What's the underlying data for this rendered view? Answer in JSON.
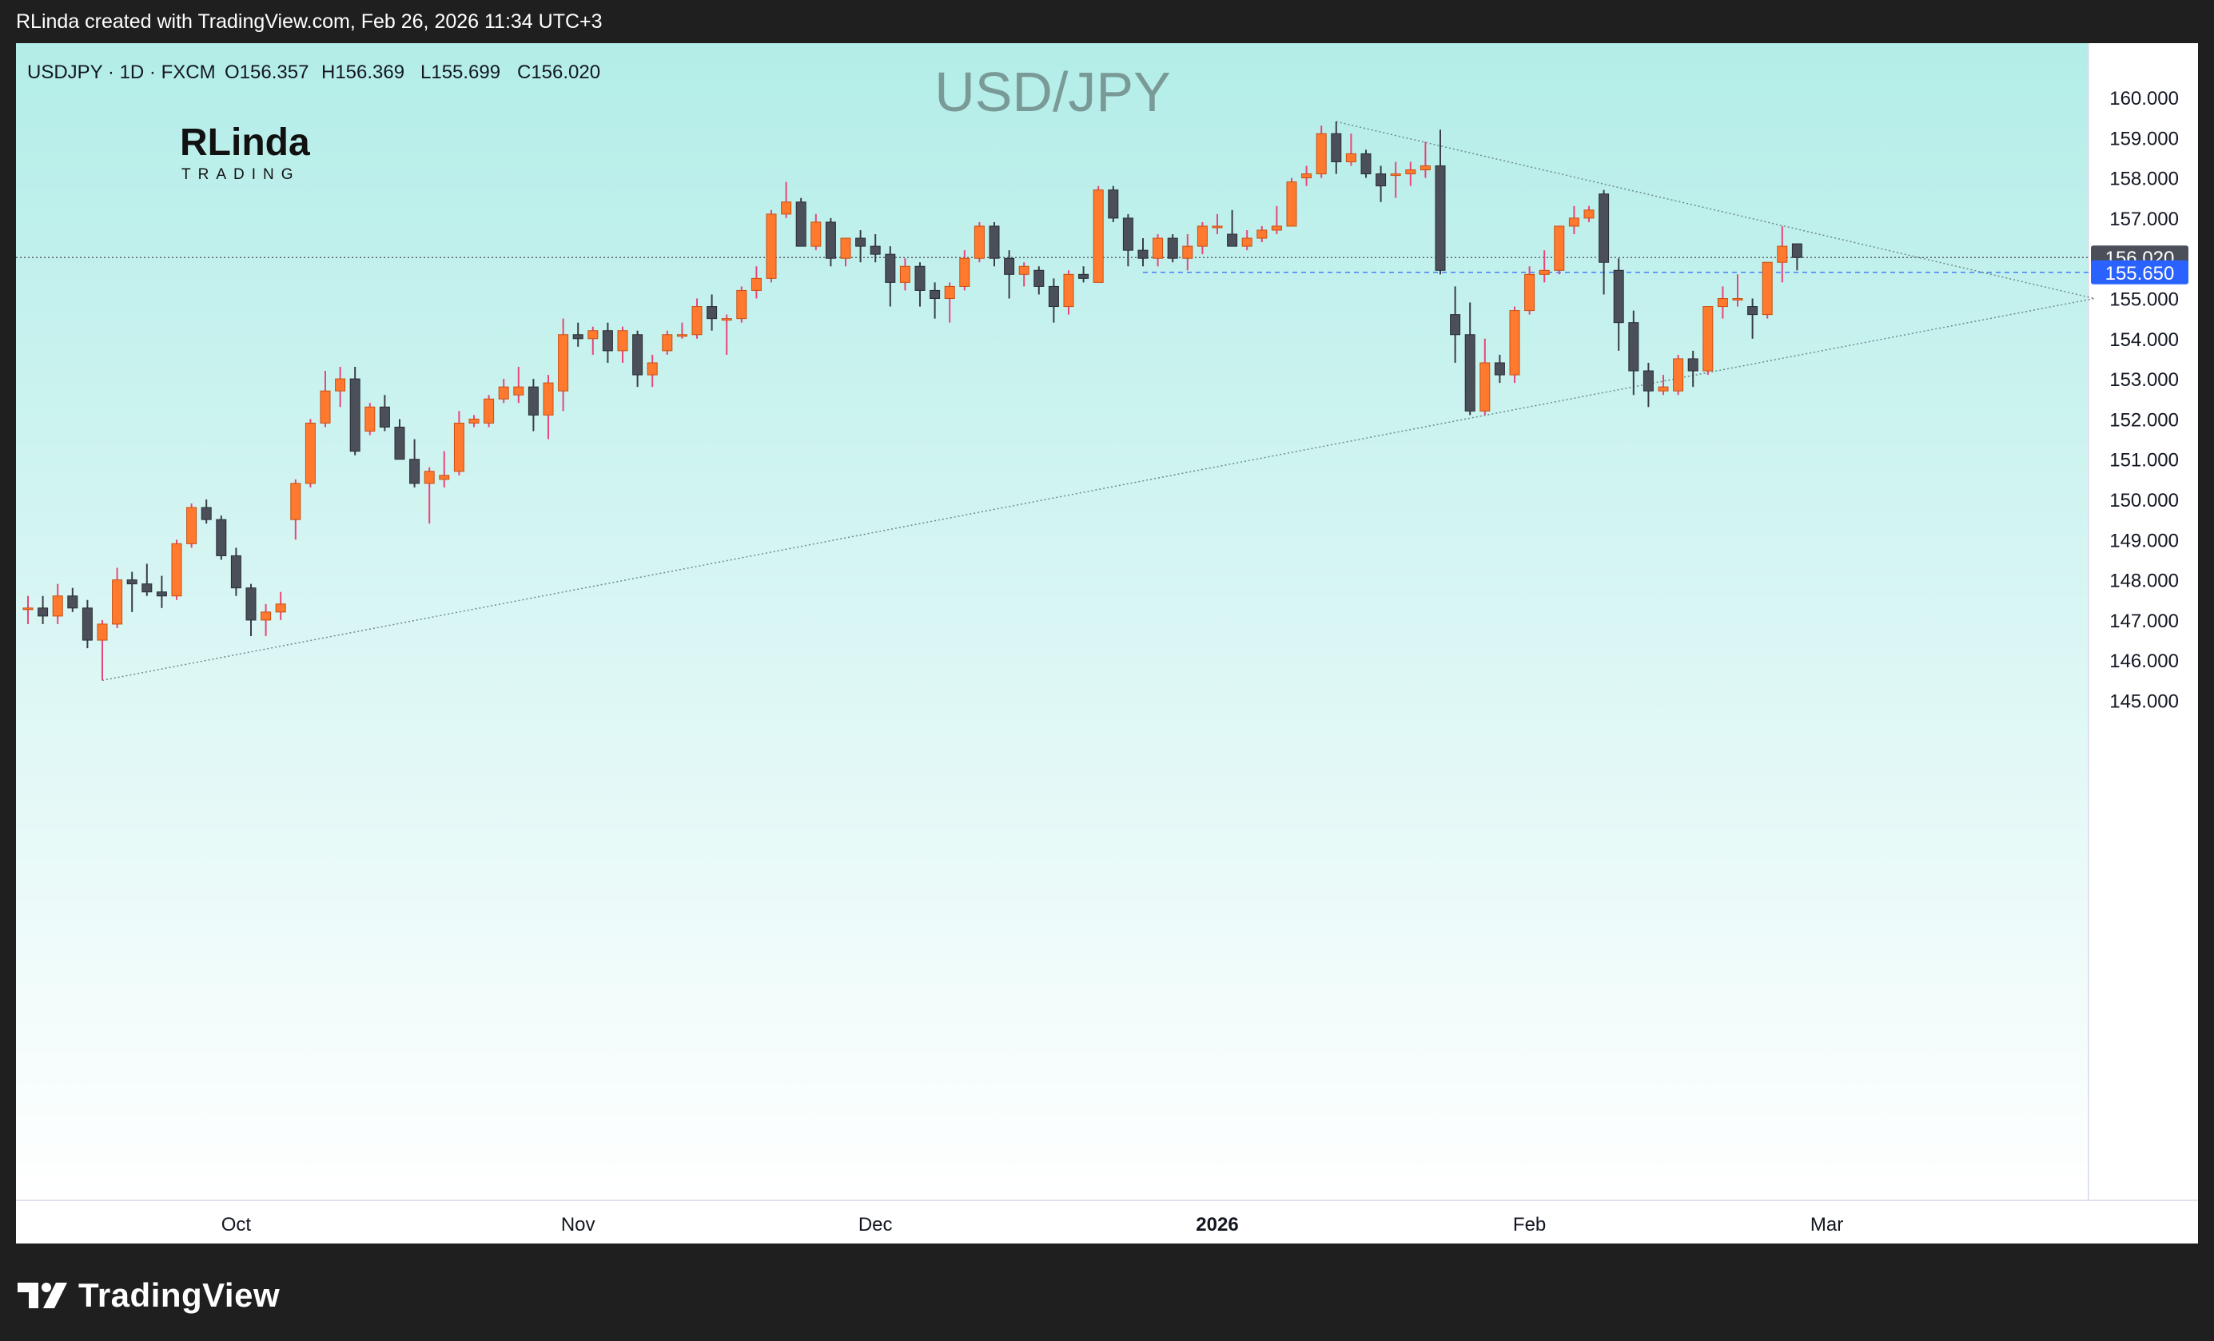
{
  "header": {
    "caption": "RLinda created with TradingView.com, Feb 26, 2026 11:34 UTC+3"
  },
  "symbol_bar": {
    "symbol": "USDJPY · 1D · FXCM",
    "open": "O156.357",
    "high": "H156.369",
    "low": "L155.699",
    "close": "C156.020"
  },
  "logo": {
    "name": "RLinda",
    "sub": "TRADING"
  },
  "footer": {
    "brand": "TradingView"
  },
  "colors": {
    "up": "#ff7a2f",
    "down": "#4b4f59",
    "up_wick": "#e8457a",
    "down_wick": "#3a3d45",
    "price_label_bg": "#4b4f59",
    "level_label_bg": "#2962ff",
    "bg_top": "#b3ede8",
    "bg_bottom": "#ffffff"
  },
  "chart_data": {
    "type": "candlestick",
    "title": "USD/JPY",
    "ylim": [
      144.5,
      160.4
    ],
    "y_ticks": [
      "160.000",
      "159.000",
      "158.000",
      "157.000",
      "156.000",
      "155.000",
      "154.000",
      "153.000",
      "152.000",
      "151.000",
      "150.000",
      "149.000",
      "148.000",
      "147.000",
      "146.000",
      "145.000"
    ],
    "x_ticks": [
      {
        "label": "Oct",
        "index": 14,
        "bold": false
      },
      {
        "label": "Nov",
        "index": 37,
        "bold": false
      },
      {
        "label": "Dec",
        "index": 57,
        "bold": false
      },
      {
        "label": "2026",
        "index": 80,
        "bold": true
      },
      {
        "label": "Feb",
        "index": 101,
        "bold": false
      },
      {
        "label": "Mar",
        "index": 121,
        "bold": false
      }
    ],
    "last_price": {
      "value": 156.02,
      "label": "156.020"
    },
    "level": {
      "value": 155.65,
      "label": "155.650",
      "from_index": 75
    },
    "trendlines": [
      {
        "name": "upper-trendline",
        "from": {
          "index": 88,
          "value": 159.4
        },
        "to": {
          "index": 139,
          "value": 155.0
        }
      },
      {
        "name": "lower-trendline",
        "from": {
          "index": 5,
          "value": 145.5
        },
        "to": {
          "index": 139,
          "value": 155.0
        }
      }
    ],
    "candles": [
      {
        "o": 147.3,
        "h": 147.6,
        "l": 146.9,
        "c": 147.3
      },
      {
        "o": 147.3,
        "h": 147.6,
        "l": 146.9,
        "c": 147.1
      },
      {
        "o": 147.1,
        "h": 147.9,
        "l": 146.9,
        "c": 147.6
      },
      {
        "o": 147.6,
        "h": 147.8,
        "l": 147.2,
        "c": 147.3
      },
      {
        "o": 147.3,
        "h": 147.5,
        "l": 146.3,
        "c": 146.5
      },
      {
        "o": 146.5,
        "h": 147.0,
        "l": 145.5,
        "c": 146.9
      },
      {
        "o": 146.9,
        "h": 148.3,
        "l": 146.8,
        "c": 148.0
      },
      {
        "o": 148.0,
        "h": 148.2,
        "l": 147.2,
        "c": 147.9
      },
      {
        "o": 147.9,
        "h": 148.4,
        "l": 147.6,
        "c": 147.7
      },
      {
        "o": 147.7,
        "h": 148.1,
        "l": 147.3,
        "c": 147.6
      },
      {
        "o": 147.6,
        "h": 149.0,
        "l": 147.5,
        "c": 148.9
      },
      {
        "o": 148.9,
        "h": 149.9,
        "l": 148.8,
        "c": 149.8
      },
      {
        "o": 149.8,
        "h": 150.0,
        "l": 149.4,
        "c": 149.5
      },
      {
        "o": 149.5,
        "h": 149.6,
        "l": 148.5,
        "c": 148.6
      },
      {
        "o": 148.6,
        "h": 148.8,
        "l": 147.6,
        "c": 147.8
      },
      {
        "o": 147.8,
        "h": 147.9,
        "l": 146.6,
        "c": 147.0
      },
      {
        "o": 147.0,
        "h": 147.4,
        "l": 146.6,
        "c": 147.2
      },
      {
        "o": 147.2,
        "h": 147.7,
        "l": 147.0,
        "c": 147.4
      },
      {
        "o": 149.5,
        "h": 150.5,
        "l": 149.0,
        "c": 150.4
      },
      {
        "o": 150.4,
        "h": 152.0,
        "l": 150.3,
        "c": 151.9
      },
      {
        "o": 151.9,
        "h": 153.2,
        "l": 151.8,
        "c": 152.7
      },
      {
        "o": 152.7,
        "h": 153.3,
        "l": 152.3,
        "c": 153.0
      },
      {
        "o": 153.0,
        "h": 153.3,
        "l": 151.1,
        "c": 151.2
      },
      {
        "o": 151.7,
        "h": 152.4,
        "l": 151.6,
        "c": 152.3
      },
      {
        "o": 152.3,
        "h": 152.6,
        "l": 151.7,
        "c": 151.8
      },
      {
        "o": 151.8,
        "h": 152.0,
        "l": 151.0,
        "c": 151.0
      },
      {
        "o": 151.0,
        "h": 151.5,
        "l": 150.3,
        "c": 150.4
      },
      {
        "o": 150.4,
        "h": 150.8,
        "l": 149.4,
        "c": 150.7
      },
      {
        "o": 150.5,
        "h": 151.2,
        "l": 150.3,
        "c": 150.6
      },
      {
        "o": 150.7,
        "h": 152.2,
        "l": 150.6,
        "c": 151.9
      },
      {
        "o": 151.9,
        "h": 152.1,
        "l": 151.8,
        "c": 152.0
      },
      {
        "o": 151.9,
        "h": 152.6,
        "l": 151.8,
        "c": 152.5
      },
      {
        "o": 152.5,
        "h": 153.0,
        "l": 152.4,
        "c": 152.8
      },
      {
        "o": 152.6,
        "h": 153.3,
        "l": 152.4,
        "c": 152.8
      },
      {
        "o": 152.8,
        "h": 153.0,
        "l": 151.7,
        "c": 152.1
      },
      {
        "o": 152.1,
        "h": 153.1,
        "l": 151.5,
        "c": 152.9
      },
      {
        "o": 152.7,
        "h": 154.5,
        "l": 152.2,
        "c": 154.1
      },
      {
        "o": 154.1,
        "h": 154.4,
        "l": 153.8,
        "c": 154.0
      },
      {
        "o": 154.0,
        "h": 154.3,
        "l": 153.6,
        "c": 154.2
      },
      {
        "o": 154.2,
        "h": 154.4,
        "l": 153.4,
        "c": 153.7
      },
      {
        "o": 153.7,
        "h": 154.3,
        "l": 153.4,
        "c": 154.2
      },
      {
        "o": 154.1,
        "h": 154.2,
        "l": 152.8,
        "c": 153.1
      },
      {
        "o": 153.1,
        "h": 153.6,
        "l": 152.8,
        "c": 153.4
      },
      {
        "o": 153.7,
        "h": 154.2,
        "l": 153.6,
        "c": 154.1
      },
      {
        "o": 154.1,
        "h": 154.4,
        "l": 154.0,
        "c": 154.1
      },
      {
        "o": 154.1,
        "h": 155.0,
        "l": 154.0,
        "c": 154.8
      },
      {
        "o": 154.8,
        "h": 155.1,
        "l": 154.2,
        "c": 154.5
      },
      {
        "o": 154.5,
        "h": 154.6,
        "l": 153.6,
        "c": 154.5
      },
      {
        "o": 154.5,
        "h": 155.3,
        "l": 154.4,
        "c": 155.2
      },
      {
        "o": 155.2,
        "h": 155.8,
        "l": 155.0,
        "c": 155.5
      },
      {
        "o": 155.5,
        "h": 157.2,
        "l": 155.4,
        "c": 157.1
      },
      {
        "o": 157.1,
        "h": 157.9,
        "l": 157.0,
        "c": 157.4
      },
      {
        "o": 157.4,
        "h": 157.5,
        "l": 156.3,
        "c": 156.3
      },
      {
        "o": 156.3,
        "h": 157.1,
        "l": 156.2,
        "c": 156.9
      },
      {
        "o": 156.9,
        "h": 157.0,
        "l": 155.8,
        "c": 156.0
      },
      {
        "o": 156.0,
        "h": 156.5,
        "l": 155.8,
        "c": 156.5
      },
      {
        "o": 156.5,
        "h": 156.7,
        "l": 155.9,
        "c": 156.3
      },
      {
        "o": 156.3,
        "h": 156.6,
        "l": 155.9,
        "c": 156.1
      },
      {
        "o": 156.1,
        "h": 156.3,
        "l": 154.8,
        "c": 155.4
      },
      {
        "o": 155.4,
        "h": 156.0,
        "l": 155.2,
        "c": 155.8
      },
      {
        "o": 155.8,
        "h": 155.9,
        "l": 154.8,
        "c": 155.2
      },
      {
        "o": 155.2,
        "h": 155.4,
        "l": 154.5,
        "c": 155.0
      },
      {
        "o": 155.0,
        "h": 155.4,
        "l": 154.4,
        "c": 155.3
      },
      {
        "o": 155.3,
        "h": 156.2,
        "l": 155.2,
        "c": 156.0
      },
      {
        "o": 156.0,
        "h": 156.9,
        "l": 155.9,
        "c": 156.8
      },
      {
        "o": 156.8,
        "h": 156.9,
        "l": 155.8,
        "c": 156.0
      },
      {
        "o": 156.0,
        "h": 156.2,
        "l": 155.0,
        "c": 155.6
      },
      {
        "o": 155.6,
        "h": 155.9,
        "l": 155.3,
        "c": 155.8
      },
      {
        "o": 155.7,
        "h": 155.8,
        "l": 155.1,
        "c": 155.3
      },
      {
        "o": 155.3,
        "h": 155.5,
        "l": 154.4,
        "c": 154.8
      },
      {
        "o": 154.8,
        "h": 155.7,
        "l": 154.6,
        "c": 155.6
      },
      {
        "o": 155.6,
        "h": 155.8,
        "l": 155.4,
        "c": 155.5
      },
      {
        "o": 155.4,
        "h": 157.8,
        "l": 155.4,
        "c": 157.7
      },
      {
        "o": 157.7,
        "h": 157.8,
        "l": 156.9,
        "c": 157.0
      },
      {
        "o": 157.0,
        "h": 157.1,
        "l": 155.8,
        "c": 156.2
      },
      {
        "o": 156.2,
        "h": 156.5,
        "l": 155.8,
        "c": 156.0
      },
      {
        "o": 156.0,
        "h": 156.6,
        "l": 155.8,
        "c": 156.5
      },
      {
        "o": 156.5,
        "h": 156.6,
        "l": 155.9,
        "c": 156.0
      },
      {
        "o": 156.0,
        "h": 156.6,
        "l": 155.7,
        "c": 156.3
      },
      {
        "o": 156.3,
        "h": 156.9,
        "l": 156.1,
        "c": 156.8
      },
      {
        "o": 156.8,
        "h": 157.1,
        "l": 156.6,
        "c": 156.8
      },
      {
        "o": 156.6,
        "h": 157.2,
        "l": 156.4,
        "c": 156.3
      },
      {
        "o": 156.3,
        "h": 156.7,
        "l": 156.2,
        "c": 156.5
      },
      {
        "o": 156.5,
        "h": 156.8,
        "l": 156.4,
        "c": 156.7
      },
      {
        "o": 156.7,
        "h": 157.3,
        "l": 156.6,
        "c": 156.8
      },
      {
        "o": 156.8,
        "h": 158.0,
        "l": 156.8,
        "c": 157.9
      },
      {
        "o": 158.0,
        "h": 158.3,
        "l": 157.8,
        "c": 158.1
      },
      {
        "o": 158.1,
        "h": 159.3,
        "l": 158.0,
        "c": 159.1
      },
      {
        "o": 159.1,
        "h": 159.4,
        "l": 158.1,
        "c": 158.4
      },
      {
        "o": 158.4,
        "h": 159.1,
        "l": 158.3,
        "c": 158.6
      },
      {
        "o": 158.6,
        "h": 158.7,
        "l": 158.0,
        "c": 158.1
      },
      {
        "o": 158.1,
        "h": 158.3,
        "l": 157.4,
        "c": 157.8
      },
      {
        "o": 158.1,
        "h": 158.4,
        "l": 157.5,
        "c": 158.1
      },
      {
        "o": 158.1,
        "h": 158.4,
        "l": 157.8,
        "c": 158.2
      },
      {
        "o": 158.2,
        "h": 158.9,
        "l": 158.0,
        "c": 158.3
      },
      {
        "o": 158.3,
        "h": 159.2,
        "l": 155.6,
        "c": 155.7
      },
      {
        "o": 154.6,
        "h": 155.3,
        "l": 153.4,
        "c": 154.1
      },
      {
        "o": 154.1,
        "h": 154.9,
        "l": 152.1,
        "c": 152.2
      },
      {
        "o": 152.2,
        "h": 154.0,
        "l": 152.1,
        "c": 153.4
      },
      {
        "o": 153.4,
        "h": 153.6,
        "l": 152.9,
        "c": 153.1
      },
      {
        "o": 153.1,
        "h": 154.8,
        "l": 152.9,
        "c": 154.7
      },
      {
        "o": 154.7,
        "h": 155.8,
        "l": 154.6,
        "c": 155.6
      },
      {
        "o": 155.6,
        "h": 156.2,
        "l": 155.4,
        "c": 155.7
      },
      {
        "o": 155.7,
        "h": 156.8,
        "l": 155.6,
        "c": 156.8
      },
      {
        "o": 156.8,
        "h": 157.3,
        "l": 156.6,
        "c": 157.0
      },
      {
        "o": 157.0,
        "h": 157.3,
        "l": 156.9,
        "c": 157.2
      },
      {
        "o": 157.6,
        "h": 157.7,
        "l": 155.1,
        "c": 155.9
      },
      {
        "o": 155.7,
        "h": 156.0,
        "l": 153.7,
        "c": 154.4
      },
      {
        "o": 154.4,
        "h": 154.7,
        "l": 152.6,
        "c": 153.2
      },
      {
        "o": 153.2,
        "h": 153.4,
        "l": 152.3,
        "c": 152.7
      },
      {
        "o": 152.7,
        "h": 153.1,
        "l": 152.6,
        "c": 152.8
      },
      {
        "o": 152.7,
        "h": 153.6,
        "l": 152.6,
        "c": 153.5
      },
      {
        "o": 153.5,
        "h": 153.7,
        "l": 152.8,
        "c": 153.2
      },
      {
        "o": 153.2,
        "h": 154.8,
        "l": 153.1,
        "c": 154.8
      },
      {
        "o": 154.8,
        "h": 155.3,
        "l": 154.5,
        "c": 155.0
      },
      {
        "o": 155.0,
        "h": 155.6,
        "l": 154.8,
        "c": 155.0
      },
      {
        "o": 154.8,
        "h": 155.0,
        "l": 154.0,
        "c": 154.6
      },
      {
        "o": 154.6,
        "h": 155.9,
        "l": 154.5,
        "c": 155.9
      },
      {
        "o": 155.9,
        "h": 156.8,
        "l": 155.4,
        "c": 156.3
      },
      {
        "o": 156.36,
        "h": 156.37,
        "l": 155.7,
        "c": 156.02
      }
    ]
  }
}
